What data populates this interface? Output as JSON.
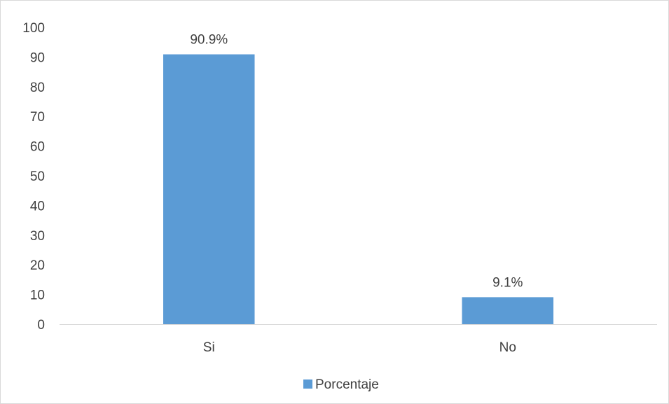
{
  "chart_data": {
    "type": "bar",
    "categories": [
      "Si",
      "No"
    ],
    "series": [
      {
        "name": "Porcentaje",
        "values": [
          90.9,
          9.1
        ],
        "data_labels": [
          "90.9%",
          "9.1%"
        ],
        "color": "#5B9BD5"
      }
    ],
    "ylim": [
      0,
      100
    ],
    "yticks": [
      0,
      10,
      20,
      30,
      40,
      50,
      60,
      70,
      80,
      90,
      100
    ],
    "grid": false,
    "legend_position": "bottom",
    "title": "",
    "xlabel": "",
    "ylabel": ""
  },
  "colors": {
    "axis": "#d9d9d9",
    "text": "#404040"
  }
}
